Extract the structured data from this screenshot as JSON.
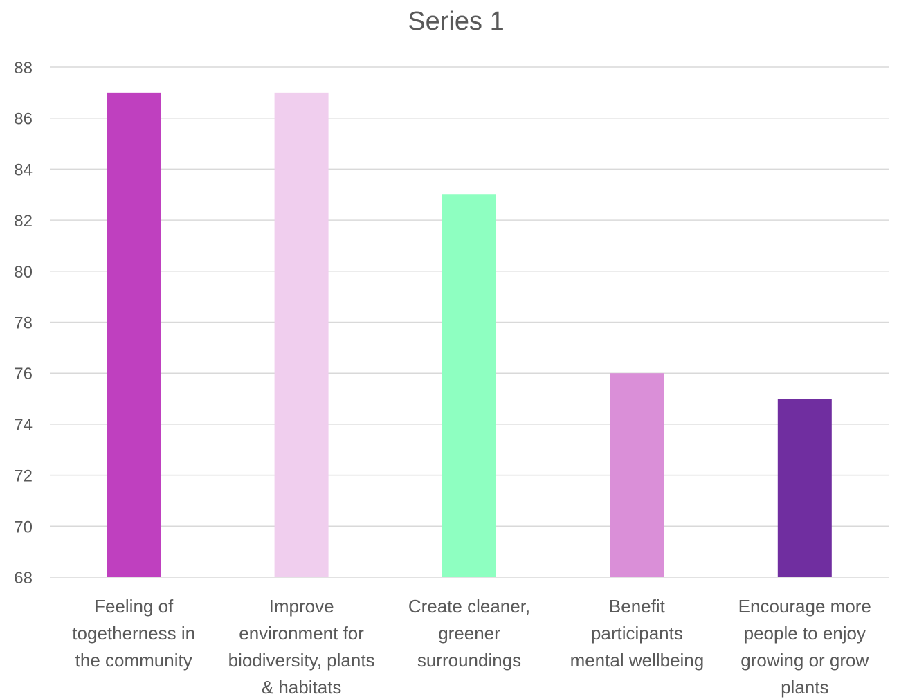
{
  "chart_data": {
    "type": "bar",
    "title": "Series 1",
    "xlabel": "",
    "ylabel": "",
    "ylim": [
      68,
      88
    ],
    "yticks": [
      68,
      70,
      72,
      74,
      76,
      78,
      80,
      82,
      84,
      86,
      88
    ],
    "grid": true,
    "legend": "none",
    "categories": [
      "Feeling of togetherness in the community",
      "Improve environment for biodiversity, plants & habitats",
      "Create cleaner, greener surroundings",
      "Benefit participants mental wellbeing",
      "Encourage more people to enjoy growing or grow plants"
    ],
    "category_lines": [
      [
        "Feeling of",
        "togetherness in",
        "the community"
      ],
      [
        "Improve",
        "environment for",
        "biodiversity, plants",
        "& habitats"
      ],
      [
        "Create cleaner,",
        "greener",
        "surroundings"
      ],
      [
        "Benefit",
        "participants",
        "mental wellbeing"
      ],
      [
        "Encourage more",
        "people to enjoy",
        "growing or grow",
        "plants"
      ]
    ],
    "values": [
      87,
      87,
      83,
      76,
      75
    ],
    "colors": [
      "#BF40BF",
      "#F0CEEE",
      "#8EFFC1",
      "#DA8FD8",
      "#702EA0"
    ]
  }
}
